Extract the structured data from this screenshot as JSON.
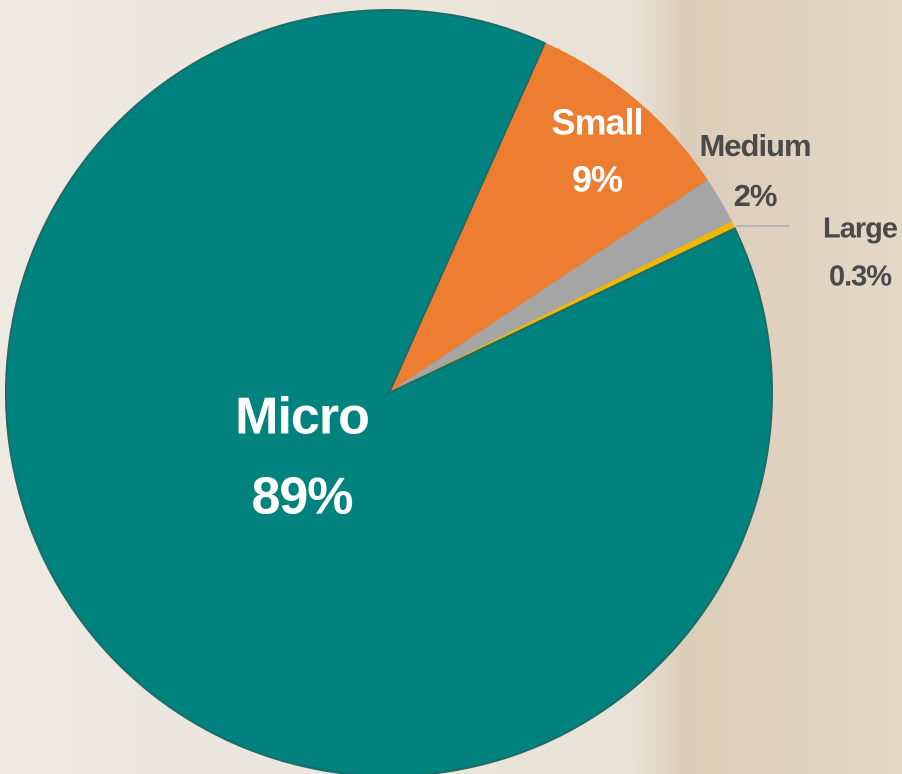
{
  "chart_data": {
    "type": "pie",
    "categories": [
      "Small",
      "Medium",
      "Large",
      "Micro"
    ],
    "values": [
      9,
      2,
      0.3,
      89
    ],
    "value_labels": [
      "9%",
      "2%",
      "0.3%",
      "89%"
    ],
    "colors": [
      "#ed7d31",
      "#a5a5a5",
      "#f2b800",
      "#00827e"
    ]
  }
}
